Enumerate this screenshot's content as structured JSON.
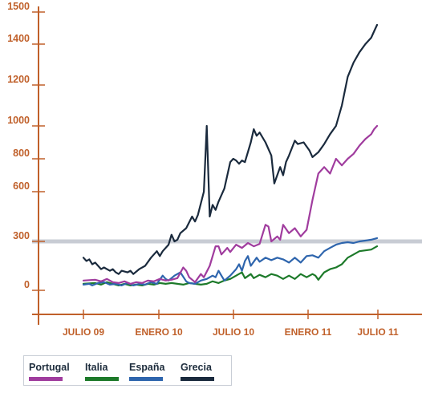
{
  "chart_data": {
    "type": "line",
    "title": "",
    "xlabel": "",
    "ylabel": "",
    "x_tick_labels": [
      "JULIO 09",
      "ENERO 10",
      "JULIO 10",
      "ENERO 11",
      "JULIO 11"
    ],
    "y_tick_labels": [
      "0",
      "300",
      "600",
      "800",
      "1000",
      "1200",
      "1400",
      "1500"
    ],
    "y_scale": "piecewise (as printed: 0, 300, 600, 800, 1000, 1200, 1400, 1500)",
    "reference_line": 300,
    "legend_position": "bottom-left",
    "grid": false,
    "series": [
      {
        "name": "Portugal",
        "color": "#a03c9e",
        "values": [
          [
            0,
            60
          ],
          [
            4,
            65
          ],
          [
            6,
            55
          ],
          [
            8,
            70
          ],
          [
            10,
            50
          ],
          [
            12,
            45
          ],
          [
            14,
            55
          ],
          [
            16,
            40
          ],
          [
            18,
            50
          ],
          [
            20,
            45
          ],
          [
            22,
            60
          ],
          [
            24,
            55
          ],
          [
            26,
            70
          ],
          [
            28,
            60
          ],
          [
            30,
            65
          ],
          [
            32,
            75
          ],
          [
            34,
            140
          ],
          [
            35,
            120
          ],
          [
            36,
            80
          ],
          [
            38,
            50
          ],
          [
            40,
            100
          ],
          [
            41,
            80
          ],
          [
            43,
            150
          ],
          [
            45,
            270
          ],
          [
            46,
            270
          ],
          [
            47,
            220
          ],
          [
            49,
            260
          ],
          [
            50,
            235
          ],
          [
            52,
            280
          ],
          [
            54,
            260
          ],
          [
            56,
            290
          ],
          [
            58,
            270
          ],
          [
            60,
            285
          ],
          [
            62,
            400
          ],
          [
            63,
            390
          ],
          [
            64,
            300
          ],
          [
            66,
            330
          ],
          [
            67,
            310
          ],
          [
            68,
            400
          ],
          [
            70,
            350
          ],
          [
            72,
            380
          ],
          [
            74,
            330
          ],
          [
            76,
            370
          ],
          [
            78,
            550
          ],
          [
            80,
            710
          ],
          [
            82,
            750
          ],
          [
            84,
            710
          ],
          [
            86,
            800
          ],
          [
            88,
            760
          ],
          [
            90,
            800
          ],
          [
            92,
            830
          ],
          [
            94,
            880
          ],
          [
            96,
            920
          ],
          [
            98,
            950
          ],
          [
            99,
            980
          ],
          [
            100,
            1000
          ]
        ]
      },
      {
        "name": "Italia",
        "color": "#1d7a2a",
        "values": [
          [
            0,
            40
          ],
          [
            4,
            45
          ],
          [
            6,
            35
          ],
          [
            8,
            50
          ],
          [
            10,
            40
          ],
          [
            12,
            30
          ],
          [
            14,
            40
          ],
          [
            16,
            30
          ],
          [
            18,
            35
          ],
          [
            20,
            30
          ],
          [
            22,
            40
          ],
          [
            24,
            35
          ],
          [
            26,
            45
          ],
          [
            28,
            40
          ],
          [
            30,
            45
          ],
          [
            32,
            40
          ],
          [
            34,
            35
          ],
          [
            36,
            45
          ],
          [
            38,
            40
          ],
          [
            40,
            35
          ],
          [
            42,
            40
          ],
          [
            44,
            55
          ],
          [
            46,
            45
          ],
          [
            48,
            60
          ],
          [
            50,
            70
          ],
          [
            52,
            90
          ],
          [
            54,
            110
          ],
          [
            55,
            75
          ],
          [
            57,
            100
          ],
          [
            58,
            75
          ],
          [
            60,
            95
          ],
          [
            62,
            80
          ],
          [
            64,
            100
          ],
          [
            66,
            90
          ],
          [
            68,
            70
          ],
          [
            70,
            90
          ],
          [
            72,
            70
          ],
          [
            74,
            100
          ],
          [
            76,
            80
          ],
          [
            78,
            100
          ],
          [
            79,
            90
          ],
          [
            80,
            65
          ],
          [
            82,
            110
          ],
          [
            84,
            130
          ],
          [
            86,
            140
          ],
          [
            88,
            160
          ],
          [
            90,
            200
          ],
          [
            92,
            220
          ],
          [
            94,
            240
          ],
          [
            96,
            245
          ],
          [
            98,
            250
          ],
          [
            100,
            270
          ]
        ]
      },
      {
        "name": "España",
        "color": "#2e65ad",
        "values": [
          [
            0,
            35
          ],
          [
            2,
            40
          ],
          [
            3,
            30
          ],
          [
            5,
            45
          ],
          [
            7,
            50
          ],
          [
            9,
            35
          ],
          [
            11,
            40
          ],
          [
            13,
            30
          ],
          [
            15,
            45
          ],
          [
            17,
            30
          ],
          [
            19,
            40
          ],
          [
            21,
            35
          ],
          [
            23,
            50
          ],
          [
            25,
            40
          ],
          [
            27,
            90
          ],
          [
            28,
            70
          ],
          [
            29,
            60
          ],
          [
            31,
            90
          ],
          [
            33,
            110
          ],
          [
            35,
            55
          ],
          [
            36,
            45
          ],
          [
            38,
            40
          ],
          [
            40,
            60
          ],
          [
            42,
            70
          ],
          [
            44,
            90
          ],
          [
            45,
            80
          ],
          [
            46,
            120
          ],
          [
            47,
            90
          ],
          [
            48,
            60
          ],
          [
            50,
            90
          ],
          [
            52,
            130
          ],
          [
            53,
            160
          ],
          [
            54,
            120
          ],
          [
            55,
            180
          ],
          [
            56,
            210
          ],
          [
            57,
            150
          ],
          [
            59,
            200
          ],
          [
            60,
            175
          ],
          [
            62,
            200
          ],
          [
            64,
            185
          ],
          [
            66,
            200
          ],
          [
            68,
            190
          ],
          [
            70,
            170
          ],
          [
            72,
            200
          ],
          [
            74,
            170
          ],
          [
            76,
            210
          ],
          [
            78,
            215
          ],
          [
            80,
            200
          ],
          [
            82,
            240
          ],
          [
            84,
            260
          ],
          [
            86,
            280
          ],
          [
            88,
            290
          ],
          [
            90,
            295
          ],
          [
            92,
            290
          ],
          [
            94,
            300
          ],
          [
            96,
            305
          ],
          [
            98,
            310
          ],
          [
            100,
            320
          ]
        ]
      },
      {
        "name": "Grecia",
        "color": "#1a2a3d",
        "values": [
          [
            0,
            200
          ],
          [
            1,
            180
          ],
          [
            2,
            190
          ],
          [
            3,
            160
          ],
          [
            4,
            170
          ],
          [
            5,
            150
          ],
          [
            6,
            130
          ],
          [
            7,
            140
          ],
          [
            9,
            120
          ],
          [
            10,
            130
          ],
          [
            11,
            110
          ],
          [
            12,
            100
          ],
          [
            13,
            120
          ],
          [
            15,
            110
          ],
          [
            16,
            120
          ],
          [
            17,
            100
          ],
          [
            19,
            130
          ],
          [
            21,
            150
          ],
          [
            23,
            200
          ],
          [
            25,
            240
          ],
          [
            26,
            210
          ],
          [
            27,
            240
          ],
          [
            29,
            280
          ],
          [
            30,
            340
          ],
          [
            31,
            300
          ],
          [
            32,
            310
          ],
          [
            33,
            350
          ],
          [
            35,
            380
          ],
          [
            37,
            450
          ],
          [
            38,
            420
          ],
          [
            39,
            460
          ],
          [
            41,
            600
          ],
          [
            42,
            1000
          ],
          [
            43,
            450
          ],
          [
            44,
            520
          ],
          [
            45,
            490
          ],
          [
            46,
            540
          ],
          [
            48,
            620
          ],
          [
            50,
            780
          ],
          [
            51,
            800
          ],
          [
            52,
            790
          ],
          [
            53,
            770
          ],
          [
            54,
            790
          ],
          [
            55,
            780
          ],
          [
            57,
            900
          ],
          [
            58,
            980
          ],
          [
            59,
            940
          ],
          [
            60,
            960
          ],
          [
            62,
            900
          ],
          [
            64,
            820
          ],
          [
            65,
            650
          ],
          [
            67,
            750
          ],
          [
            68,
            700
          ],
          [
            69,
            780
          ],
          [
            70,
            820
          ],
          [
            72,
            910
          ],
          [
            73,
            890
          ],
          [
            75,
            900
          ],
          [
            77,
            850
          ],
          [
            78,
            810
          ],
          [
            80,
            840
          ],
          [
            82,
            890
          ],
          [
            84,
            950
          ],
          [
            86,
            1000
          ],
          [
            88,
            1100
          ],
          [
            90,
            1240
          ],
          [
            92,
            1310
          ],
          [
            94,
            1360
          ],
          [
            96,
            1400
          ],
          [
            98,
            1420
          ],
          [
            99,
            1440
          ],
          [
            100,
            1460
          ]
        ]
      }
    ]
  }
}
